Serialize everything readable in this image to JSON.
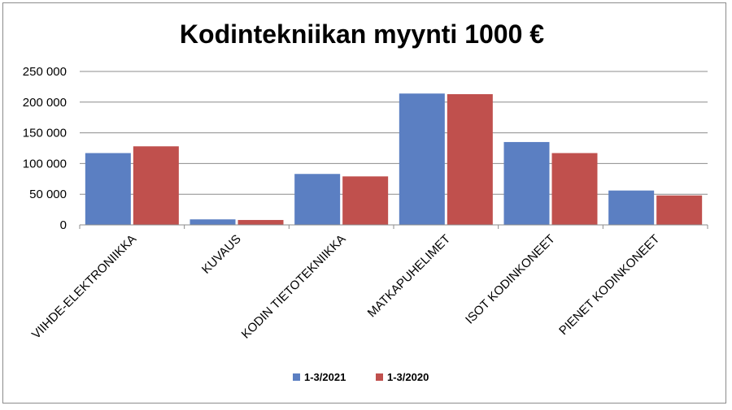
{
  "chart_data": {
    "type": "bar",
    "title": "Kodintekniikan myynti 1000 €",
    "categories": [
      "VIIHDE-ELEKTRONIIKKA",
      "KUVAUS",
      "KODIN TIETOTEKNIIKKA",
      "MATKAPUHELIMET",
      "ISOT KODINKONEET",
      "PIENET KODINKONEET"
    ],
    "series": [
      {
        "name": "1-3/2021",
        "color": "#5b7fc2",
        "values": [
          117000,
          9000,
          83000,
          214000,
          135000,
          56000
        ]
      },
      {
        "name": "1-3/2020",
        "color": "#c0504d",
        "values": [
          128000,
          8000,
          79000,
          213000,
          117000,
          48000
        ]
      }
    ],
    "ylim": [
      0,
      250000
    ],
    "yticks": [
      0,
      50000,
      100000,
      150000,
      200000,
      250000
    ],
    "ytick_labels": [
      "0",
      "50 000",
      "100 000",
      "150 000",
      "200 000",
      "250 000"
    ],
    "grid": true,
    "legend": "bottom"
  }
}
